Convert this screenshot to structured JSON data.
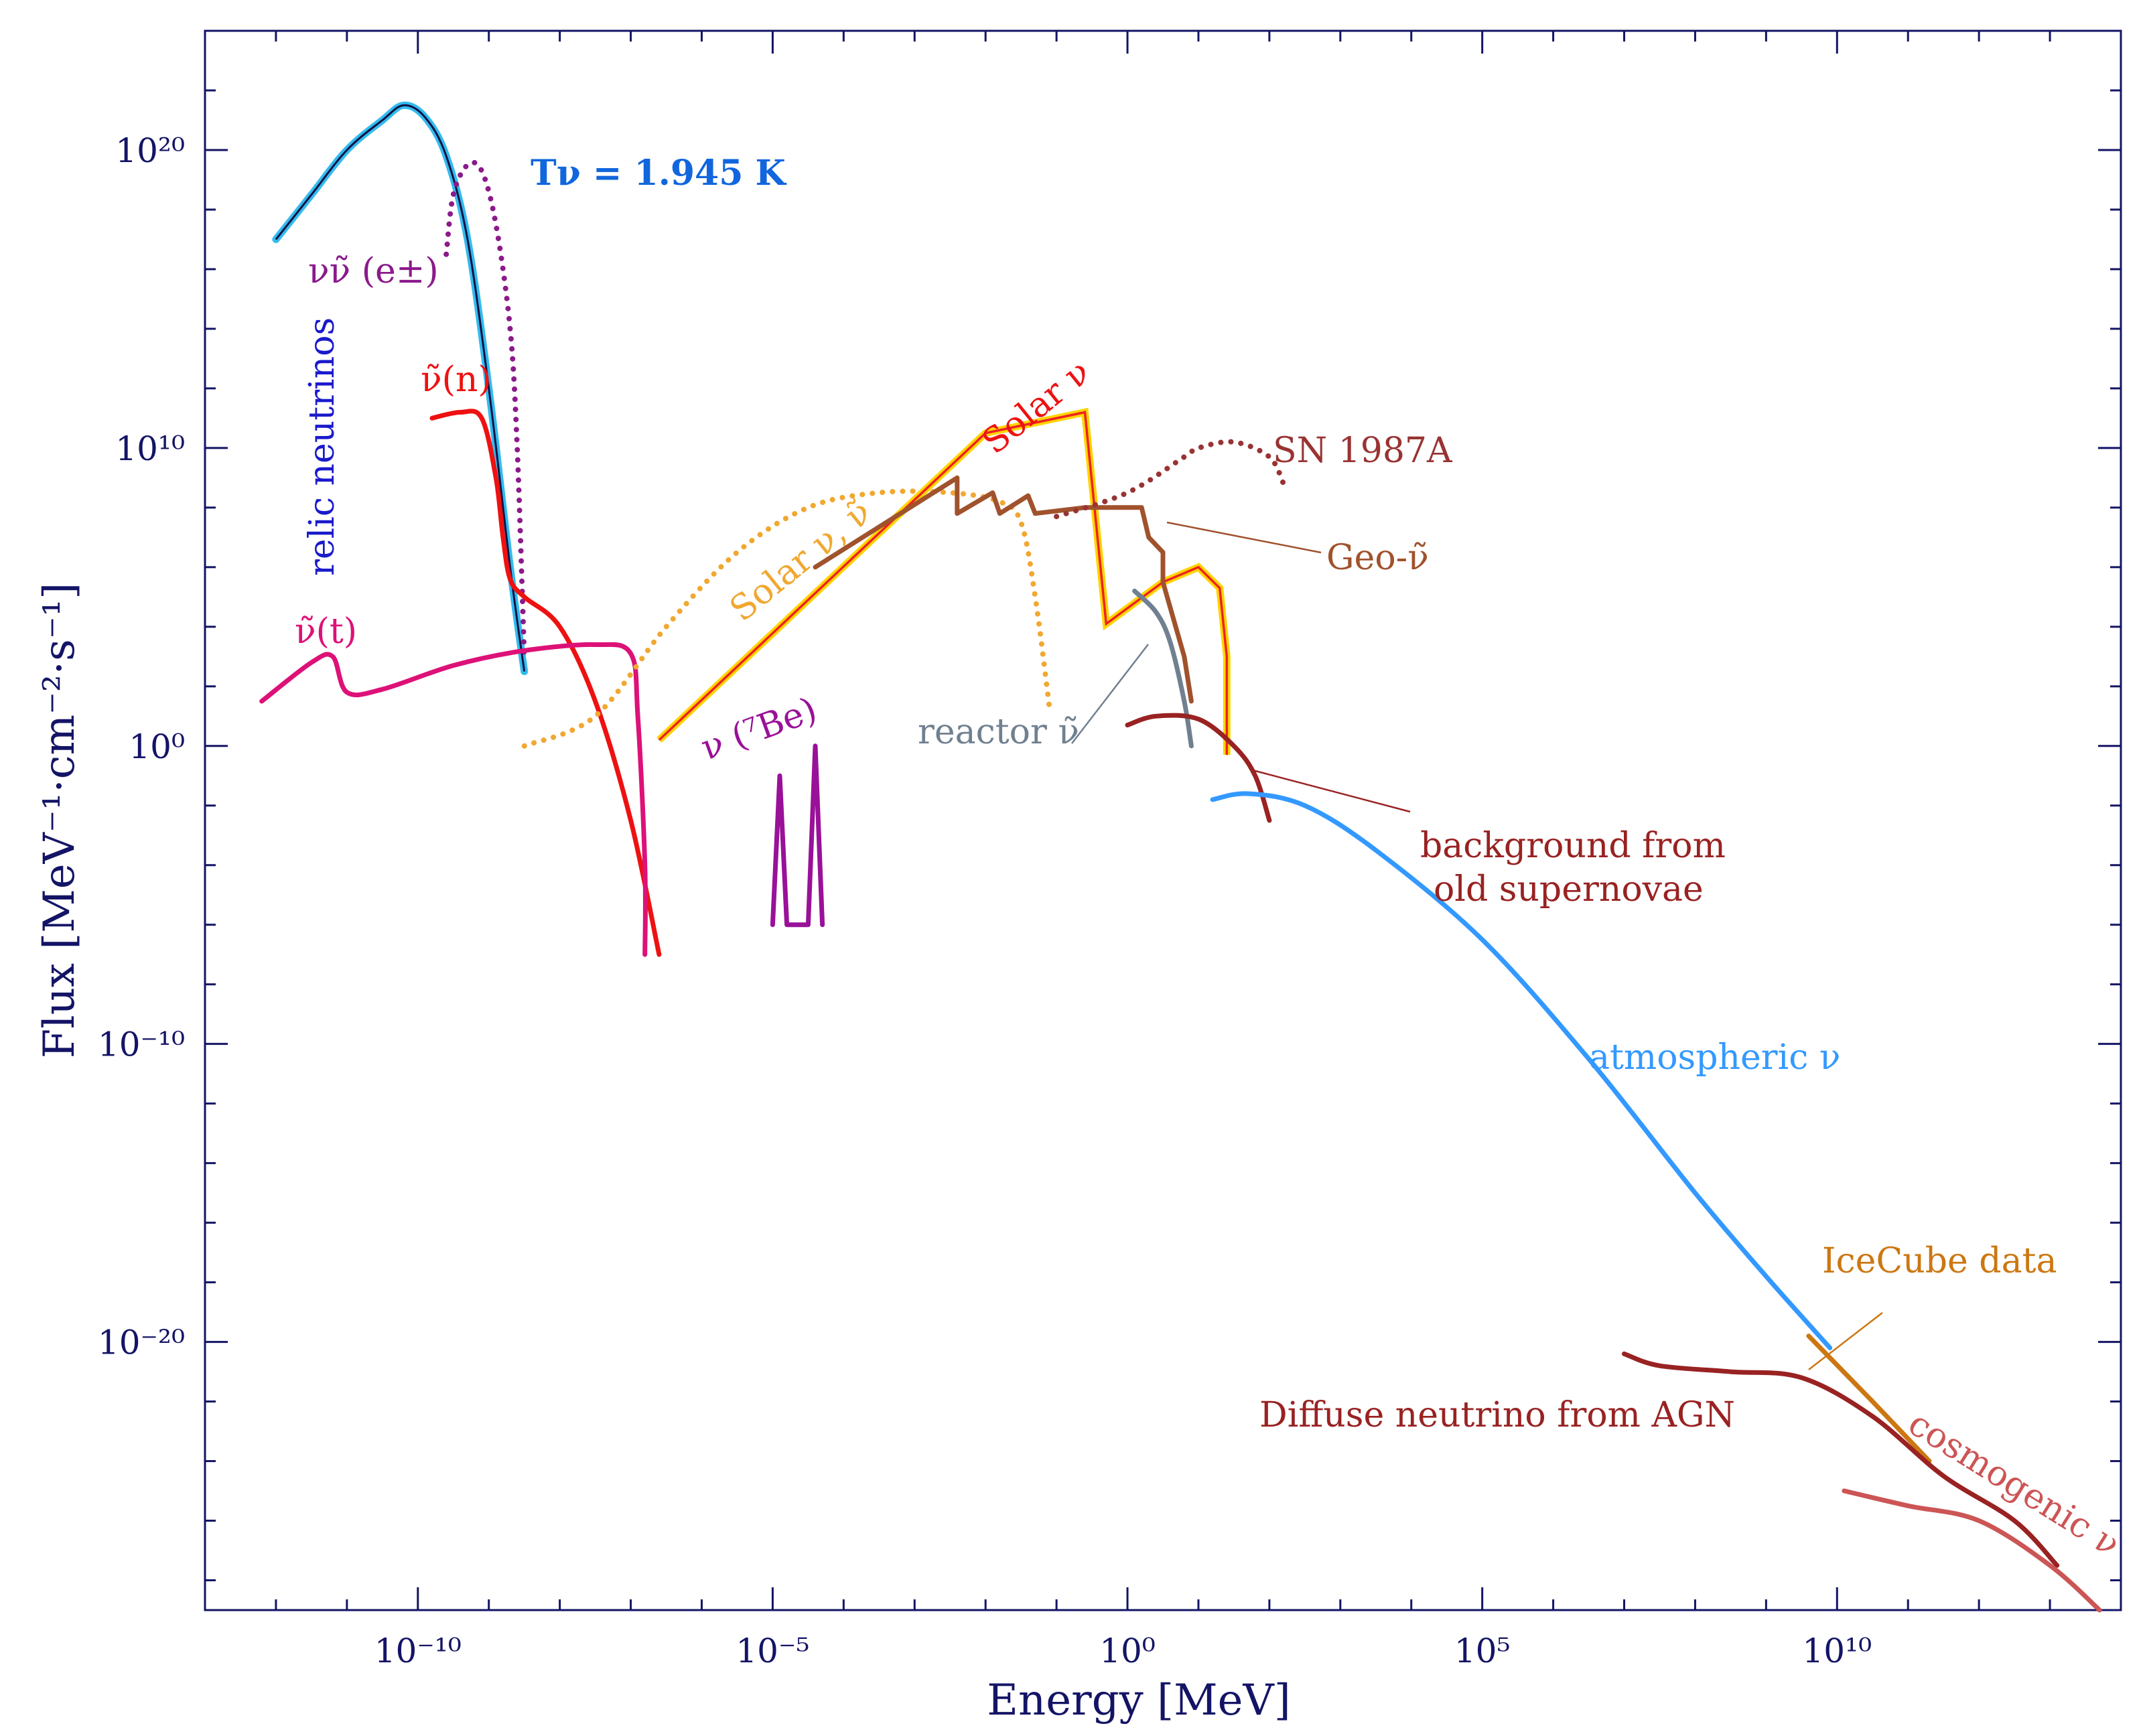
{
  "chart_data": {
    "type": "line",
    "title": "",
    "xlabel": "Energy [MeV]",
    "ylabel": "Flux [MeV⁻¹·cm⁻²·s⁻¹]",
    "x_scale": "log",
    "y_scale": "log",
    "xlim_log10": [
      -13,
      14
    ],
    "ylim_log10": [
      -29,
      24
    ],
    "x_ticks": [
      {
        "exp": -10,
        "label": "10⁻¹⁰"
      },
      {
        "exp": -5,
        "label": "10⁻⁵"
      },
      {
        "exp": 0,
        "label": "10⁰"
      },
      {
        "exp": 5,
        "label": "10⁵"
      },
      {
        "exp": 10,
        "label": "10¹⁰"
      }
    ],
    "y_ticks": [
      {
        "exp": 20,
        "label": "10²⁰"
      },
      {
        "exp": 10,
        "label": "10¹⁰"
      },
      {
        "exp": 0,
        "label": "10⁰"
      },
      {
        "exp": -10,
        "label": "10⁻¹⁰"
      },
      {
        "exp": -20,
        "label": "10⁻²⁰"
      }
    ],
    "series": [
      {
        "name": "relic neutrinos",
        "color": "#33bbee",
        "style": "solid",
        "points": [
          [
            -12.0,
            17.0
          ],
          [
            -11.5,
            18.5
          ],
          [
            -11.0,
            20.0
          ],
          [
            -10.5,
            21.0
          ],
          [
            -10.2,
            21.5
          ],
          [
            -9.9,
            21.1
          ],
          [
            -9.6,
            19.8
          ],
          [
            -9.3,
            17.0
          ],
          [
            -9.0,
            12.0
          ],
          [
            -8.7,
            6.0
          ],
          [
            -8.5,
            2.5
          ]
        ]
      },
      {
        "name": "νν̃ (e±) relic",
        "color": "#8b1a8b",
        "style": "dotted",
        "points": [
          [
            -9.6,
            16.5
          ],
          [
            -9.5,
            18.5
          ],
          [
            -9.3,
            19.5
          ],
          [
            -9.1,
            19.3
          ],
          [
            -8.9,
            17.5
          ],
          [
            -8.7,
            14.0
          ],
          [
            -8.6,
            10.0
          ],
          [
            -8.5,
            3.0
          ]
        ]
      },
      {
        "name": "ν̃(n)",
        "color": "#ee1111",
        "style": "solid",
        "points": [
          [
            -9.8,
            11.0
          ],
          [
            -9.4,
            11.2
          ],
          [
            -9.1,
            11.0
          ],
          [
            -8.9,
            9.0
          ],
          [
            -8.8,
            7.0
          ],
          [
            -8.7,
            5.6
          ],
          [
            -8.5,
            5.0
          ],
          [
            -8.0,
            4.0
          ],
          [
            -7.5,
            1.5
          ],
          [
            -7.0,
            -2.5
          ],
          [
            -6.6,
            -7.0
          ]
        ]
      },
      {
        "name": "ν̃(t)",
        "color": "#dd1177",
        "style": "solid",
        "points": [
          [
            -12.2,
            1.5
          ],
          [
            -11.5,
            2.8
          ],
          [
            -11.2,
            3.0
          ],
          [
            -11.0,
            1.8
          ],
          [
            -10.5,
            1.9
          ],
          [
            -9.5,
            2.7
          ],
          [
            -8.5,
            3.2
          ],
          [
            -7.5,
            3.4
          ],
          [
            -7.0,
            3.1
          ],
          [
            -6.9,
            1.0
          ],
          [
            -6.8,
            -4.0
          ],
          [
            -6.8,
            -7.0
          ]
        ]
      },
      {
        "name": "Solar ν,ν̃",
        "color": "#f0a830",
        "style": "dotted",
        "points": [
          [
            -8.5,
            0.0
          ],
          [
            -7.5,
            1.0
          ],
          [
            -6.5,
            4.0
          ],
          [
            -5.5,
            6.5
          ],
          [
            -4.5,
            8.0
          ],
          [
            -3.5,
            8.5
          ],
          [
            -2.5,
            8.5
          ],
          [
            -1.8,
            8.2
          ],
          [
            -1.5,
            7.5
          ],
          [
            -1.3,
            5.0
          ],
          [
            -1.1,
            1.3
          ]
        ]
      },
      {
        "name": "Solar ν",
        "color": "#ee2222",
        "style": "solid",
        "points": [
          [
            -6.6,
            0.2
          ],
          [
            -2.0,
            10.5
          ],
          [
            -0.6,
            11.2
          ],
          [
            -0.3,
            4.1
          ],
          [
            0.5,
            5.5
          ],
          [
            1.0,
            6.0
          ],
          [
            1.3,
            5.3
          ],
          [
            1.4,
            3.0
          ],
          [
            1.4,
            -0.3
          ]
        ]
      },
      {
        "name": "ν(⁷Be)",
        "color": "#991199",
        "style": "solid",
        "points": [
          [
            -5.0,
            -6.0
          ],
          [
            -4.9,
            -1.0
          ],
          [
            -4.8,
            -6.0
          ],
          [
            -4.5,
            -6.0
          ],
          [
            -4.4,
            0.0
          ],
          [
            -4.3,
            -6.0
          ]
        ]
      },
      {
        "name": "Geo-ν̃",
        "color": "#a0522d",
        "style": "solid",
        "points": [
          [
            -4.4,
            6.0
          ],
          [
            -2.4,
            9.0
          ],
          [
            -2.4,
            7.8
          ],
          [
            -1.9,
            8.5
          ],
          [
            -1.8,
            7.8
          ],
          [
            -1.4,
            8.4
          ],
          [
            -1.3,
            7.8
          ],
          [
            -0.6,
            8.0
          ],
          [
            0.2,
            8.0
          ],
          [
            0.3,
            7.0
          ],
          [
            0.5,
            6.5
          ],
          [
            0.5,
            5.5
          ],
          [
            0.8,
            3.0
          ],
          [
            0.9,
            1.5
          ]
        ]
      },
      {
        "name": "SN 1987A",
        "color": "#993333",
        "style": "dotted",
        "points": [
          [
            -1.0,
            7.7
          ],
          [
            0.0,
            8.5
          ],
          [
            0.8,
            9.7
          ],
          [
            1.0,
            10.0
          ],
          [
            1.5,
            10.2
          ],
          [
            2.0,
            9.7
          ],
          [
            2.2,
            8.8
          ]
        ]
      },
      {
        "name": "reactor ν̃",
        "color": "#708090",
        "style": "solid",
        "points": [
          [
            0.1,
            5.2
          ],
          [
            0.4,
            4.5
          ],
          [
            0.6,
            3.5
          ],
          [
            0.8,
            1.5
          ],
          [
            0.9,
            0.0
          ]
        ]
      },
      {
        "name": "background from old supernovae",
        "color": "#992222",
        "style": "solid",
        "points": [
          [
            0.0,
            0.7
          ],
          [
            0.4,
            1.0
          ],
          [
            1.0,
            0.9
          ],
          [
            1.5,
            0.0
          ],
          [
            1.8,
            -1.0
          ],
          [
            2.0,
            -2.5
          ]
        ]
      },
      {
        "name": "atmospheric ν",
        "color": "#3399ff",
        "style": "solid",
        "points": [
          [
            1.2,
            -1.8
          ],
          [
            1.7,
            -1.6
          ],
          [
            2.5,
            -2.0
          ],
          [
            3.5,
            -3.5
          ],
          [
            5.0,
            -6.5
          ],
          [
            6.5,
            -10.5
          ],
          [
            8.0,
            -15.0
          ],
          [
            9.0,
            -17.8
          ],
          [
            9.9,
            -20.2
          ]
        ]
      },
      {
        "name": "IceCube data",
        "color": "#cc7711",
        "style": "solid",
        "points": [
          [
            9.6,
            -19.8
          ],
          [
            10.5,
            -22.0
          ],
          [
            11.3,
            -24.0
          ]
        ]
      },
      {
        "name": "Diffuse neutrino from AGN",
        "color": "#992222",
        "style": "solid",
        "points": [
          [
            7.0,
            -20.4
          ],
          [
            7.5,
            -20.8
          ],
          [
            8.5,
            -21.0
          ],
          [
            9.5,
            -21.2
          ],
          [
            10.5,
            -22.5
          ],
          [
            11.5,
            -24.5
          ],
          [
            12.5,
            -26.0
          ],
          [
            13.1,
            -27.5
          ]
        ]
      },
      {
        "name": "cosmogenic ν",
        "color": "#cc5555",
        "style": "solid",
        "points": [
          [
            10.1,
            -25.0
          ],
          [
            11.0,
            -25.5
          ],
          [
            12.0,
            -26.0
          ],
          [
            13.0,
            -27.5
          ],
          [
            13.7,
            -29.0
          ]
        ]
      }
    ],
    "annotations": [
      {
        "id": "t-nu",
        "text": "Tν = 1.945 K",
        "color": "#1166dd"
      },
      {
        "id": "relic",
        "text": "relic neutrinos",
        "color": "#1a1acc"
      },
      {
        "id": "nunu-epm",
        "text": "νν̃ (e±)",
        "color": "#8b1a8b"
      },
      {
        "id": "nubar-n",
        "text": "ν̃(n)",
        "color": "#ee1111"
      },
      {
        "id": "nubar-t",
        "text": "ν̃(t)",
        "color": "#dd1177"
      },
      {
        "id": "solar-nu-nubar",
        "text": "Solar ν, ν̃",
        "color": "#f0a830"
      },
      {
        "id": "solar-nu",
        "text": "Solar ν",
        "color": "#ee1111"
      },
      {
        "id": "be7",
        "text": "ν (⁷Be)",
        "color": "#991199"
      },
      {
        "id": "sn1987a",
        "text": "SN 1987A",
        "color": "#993333"
      },
      {
        "id": "geo",
        "text": "Geo-ν̃",
        "color": "#a0522d"
      },
      {
        "id": "reactor",
        "text": "reactor ν̃",
        "color": "#708090"
      },
      {
        "id": "old-sn-1",
        "text": "background from",
        "color": "#992222"
      },
      {
        "id": "old-sn-2",
        "text": "old supernovae",
        "color": "#992222"
      },
      {
        "id": "atmospheric",
        "text": "atmospheric ν",
        "color": "#3399ff"
      },
      {
        "id": "icecube",
        "text": "IceCube data",
        "color": "#cc7711"
      },
      {
        "id": "agn",
        "text": "Diffuse neutrino from AGN",
        "color": "#992222"
      },
      {
        "id": "cosmogenic",
        "text": "cosmogenic ν",
        "color": "#cc5555"
      }
    ]
  }
}
